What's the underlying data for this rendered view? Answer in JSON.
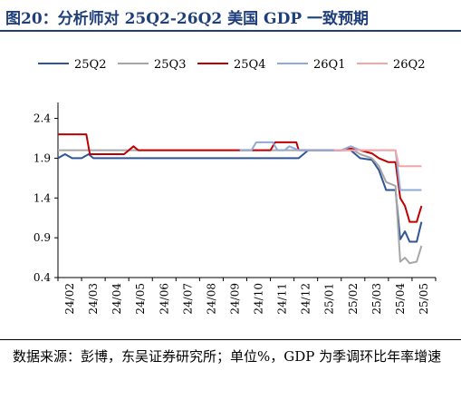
{
  "header": {
    "title": "图20：分析师对 25Q2-26Q2 美国 GDP 一致预期"
  },
  "footer": {
    "source": "数据来源：彭博，东吴证券研究所；单位%，GDP 为季调环比年率增速"
  },
  "colors": {
    "title": "#1f3f7a"
  },
  "chart_data": {
    "type": "line",
    "ylim": [
      0.4,
      2.6
    ],
    "yticks": [
      0.4,
      0.9,
      1.4,
      1.9,
      2.4
    ],
    "xlim": [
      0,
      16
    ],
    "categories": [
      "24/02",
      "24/03",
      "24/04",
      "24/05",
      "24/06",
      "24/07",
      "24/08",
      "24/09",
      "24/10",
      "24/11",
      "24/12",
      "25/01",
      "25/02",
      "25/03",
      "25/04",
      "25/05"
    ],
    "grid": false,
    "legend_position": "top",
    "series": [
      {
        "name": "25Q2",
        "color": "#2f5597",
        "points": [
          [
            0,
            1.9
          ],
          [
            0.3,
            1.95
          ],
          [
            0.6,
            1.9
          ],
          [
            1.0,
            1.9
          ],
          [
            1.3,
            1.95
          ],
          [
            1.5,
            1.9
          ],
          [
            2,
            1.9
          ],
          [
            3,
            1.9
          ],
          [
            5,
            1.9
          ],
          [
            7,
            1.9
          ],
          [
            9,
            1.9
          ],
          [
            10.2,
            1.9
          ],
          [
            10.6,
            2.0
          ],
          [
            12,
            2.0
          ],
          [
            12.4,
            2.0
          ],
          [
            12.8,
            1.9
          ],
          [
            13.3,
            1.88
          ],
          [
            13.6,
            1.75
          ],
          [
            13.9,
            1.5
          ],
          [
            14.3,
            1.5
          ],
          [
            14.5,
            0.88
          ],
          [
            14.7,
            0.98
          ],
          [
            14.9,
            0.85
          ],
          [
            15.2,
            0.85
          ],
          [
            15.4,
            1.1
          ]
        ]
      },
      {
        "name": "25Q3",
        "color": "#a6a6a6",
        "points": [
          [
            0,
            2.0
          ],
          [
            3,
            2.0
          ],
          [
            6,
            2.0
          ],
          [
            9,
            2.0
          ],
          [
            12,
            2.0
          ],
          [
            12.4,
            2.02
          ],
          [
            12.8,
            1.95
          ],
          [
            13.3,
            1.9
          ],
          [
            13.6,
            1.8
          ],
          [
            13.9,
            1.6
          ],
          [
            14.3,
            1.55
          ],
          [
            14.5,
            0.6
          ],
          [
            14.7,
            0.65
          ],
          [
            14.9,
            0.58
          ],
          [
            15.2,
            0.6
          ],
          [
            15.4,
            0.8
          ]
        ]
      },
      {
        "name": "25Q4",
        "color": "#c00000",
        "points": [
          [
            0,
            2.2
          ],
          [
            1.2,
            2.2
          ],
          [
            1.35,
            1.95
          ],
          [
            1.6,
            1.95
          ],
          [
            2,
            1.95
          ],
          [
            2.8,
            1.95
          ],
          [
            3.2,
            2.05
          ],
          [
            3.4,
            2.0
          ],
          [
            5,
            2.0
          ],
          [
            7,
            2.0
          ],
          [
            9,
            2.0
          ],
          [
            9.2,
            2.1
          ],
          [
            10.1,
            2.1
          ],
          [
            10.2,
            2.0
          ],
          [
            12,
            2.0
          ],
          [
            12.4,
            2.02
          ],
          [
            12.8,
            2.0
          ],
          [
            13.3,
            1.96
          ],
          [
            13.6,
            1.9
          ],
          [
            14.0,
            1.85
          ],
          [
            14.3,
            1.85
          ],
          [
            14.5,
            1.4
          ],
          [
            14.7,
            1.3
          ],
          [
            14.9,
            1.1
          ],
          [
            15.2,
            1.1
          ],
          [
            15.4,
            1.3
          ]
        ]
      },
      {
        "name": "26Q1",
        "color": "#8eaadb",
        "points": [
          [
            7.7,
            2.0
          ],
          [
            8.2,
            2.0
          ],
          [
            8.4,
            2.1
          ],
          [
            9.1,
            2.1
          ],
          [
            9.3,
            2.0
          ],
          [
            9.6,
            2.0
          ],
          [
            9.8,
            2.05
          ],
          [
            10.2,
            2.0
          ],
          [
            12,
            2.0
          ],
          [
            12.4,
            2.05
          ],
          [
            12.8,
            2.0
          ],
          [
            13.3,
            2.0
          ],
          [
            14.3,
            2.0
          ],
          [
            14.5,
            1.5
          ],
          [
            14.9,
            1.5
          ],
          [
            15.4,
            1.5
          ]
        ]
      },
      {
        "name": "26Q2",
        "color": "#f4a6a6",
        "points": [
          [
            11.7,
            2.0
          ],
          [
            12.4,
            2.0
          ],
          [
            13.3,
            2.0
          ],
          [
            14.3,
            2.0
          ],
          [
            14.45,
            1.8
          ],
          [
            14.9,
            1.8
          ],
          [
            15.4,
            1.8
          ]
        ]
      }
    ]
  }
}
